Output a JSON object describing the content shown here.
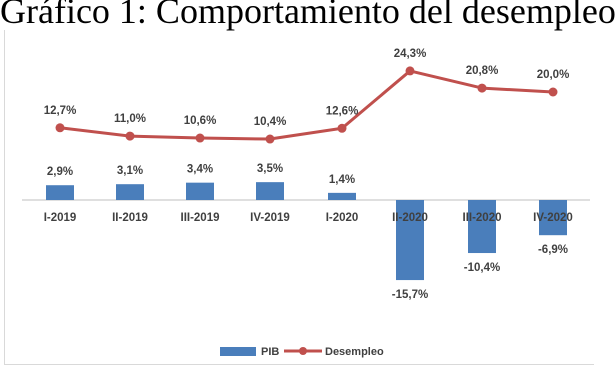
{
  "title": "Gráfico 1: Comportamiento del desempleo",
  "chart_data": {
    "type": "bar",
    "categories": [
      "I-2019",
      "II-2019",
      "III-2019",
      "IV-2019",
      "I-2020",
      "II-2020",
      "III-2020",
      "IV-2020"
    ],
    "series": [
      {
        "name": "PIB",
        "type": "bar",
        "color": "#4a7ebb",
        "values": [
          2.9,
          3.1,
          3.4,
          3.5,
          1.4,
          -15.7,
          -10.4,
          -6.9
        ],
        "labels": [
          "2,9%",
          "3,1%",
          "3,4%",
          "3,5%",
          "1,4%",
          "-15,7%",
          "-10,4%",
          "-6,9%"
        ]
      },
      {
        "name": "Desempleo",
        "type": "line",
        "color": "#c0504d",
        "values": [
          12.7,
          11.0,
          10.6,
          10.4,
          12.6,
          24.3,
          20.8,
          20.0
        ],
        "labels": [
          "12,7%",
          "11,0%",
          "10,6%",
          "10,4%",
          "12,6%",
          "24,3%",
          "20,8%",
          "20,0%"
        ]
      }
    ],
    "grid": false,
    "legend": "bottom-center"
  }
}
